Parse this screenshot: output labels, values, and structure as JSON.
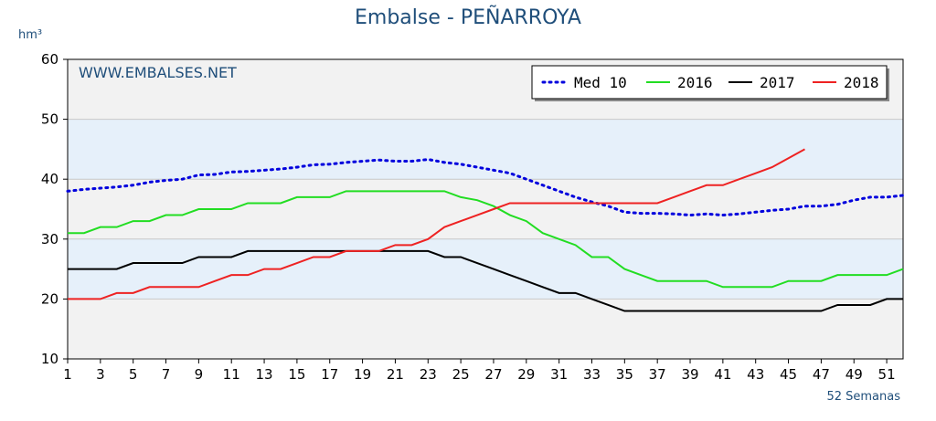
{
  "chart_data": {
    "type": "line",
    "title": "Embalse - PEÑARROYA",
    "y_label": "hm³",
    "x_label": "52 Semanas",
    "watermark": "WWW.EMBALSES.NET",
    "x": [
      1,
      2,
      3,
      4,
      5,
      6,
      7,
      8,
      9,
      10,
      11,
      12,
      13,
      14,
      15,
      16,
      17,
      18,
      19,
      20,
      21,
      22,
      23,
      24,
      25,
      26,
      27,
      28,
      29,
      30,
      31,
      32,
      33,
      34,
      35,
      36,
      37,
      38,
      39,
      40,
      41,
      42,
      43,
      44,
      45,
      46,
      47,
      48,
      49,
      50,
      51,
      52
    ],
    "xlim": [
      1,
      52
    ],
    "xticks": [
      1,
      3,
      5,
      7,
      9,
      11,
      13,
      15,
      17,
      19,
      21,
      23,
      25,
      27,
      29,
      31,
      33,
      35,
      37,
      39,
      41,
      43,
      45,
      47,
      49,
      51
    ],
    "ylim": [
      10,
      60
    ],
    "yticks": [
      10,
      20,
      30,
      40,
      50,
      60
    ],
    "grid": true,
    "legend": "top-right",
    "series": [
      {
        "name": "Med 10",
        "color": "#0000dd",
        "dash": "dotted",
        "values": [
          38,
          38.3,
          38.5,
          38.7,
          39,
          39.5,
          39.8,
          40,
          40.7,
          40.8,
          41.2,
          41.3,
          41.5,
          41.7,
          42,
          42.4,
          42.5,
          42.8,
          43,
          43.2,
          43,
          43,
          43.3,
          42.8,
          42.5,
          42,
          41.5,
          41,
          40,
          39,
          38,
          37,
          36.2,
          35.5,
          34.5,
          34.3,
          34.3,
          34.2,
          34,
          34.2,
          34,
          34.2,
          34.5,
          34.8,
          35,
          35.5,
          35.5,
          35.8,
          36.5,
          37,
          37,
          37.3
        ]
      },
      {
        "name": "2016",
        "color": "#22dd22",
        "values": [
          31,
          31,
          32,
          32,
          33,
          33,
          34,
          34,
          35,
          35,
          35,
          36,
          36,
          36,
          37,
          37,
          37,
          38,
          38,
          38,
          38,
          38,
          38,
          38,
          37,
          36.5,
          35.5,
          34,
          33,
          31,
          30,
          29,
          27,
          27,
          25,
          24,
          23,
          23,
          23,
          23,
          22,
          22,
          22,
          22,
          23,
          23,
          23,
          24,
          24,
          24,
          24,
          25
        ]
      },
      {
        "name": "2017",
        "color": "#000000",
        "values": [
          25,
          25,
          25,
          25,
          26,
          26,
          26,
          26,
          27,
          27,
          27,
          28,
          28,
          28,
          28,
          28,
          28,
          28,
          28,
          28,
          28,
          28,
          28,
          27,
          27,
          26,
          25,
          24,
          23,
          22,
          21,
          21,
          20,
          19,
          18,
          18,
          18,
          18,
          18,
          18,
          18,
          18,
          18,
          18,
          18,
          18,
          18,
          19,
          19,
          19,
          20,
          20
        ]
      },
      {
        "name": "2018",
        "color": "#ee2222",
        "values": [
          20,
          20,
          20,
          21,
          21,
          22,
          22,
          22,
          22,
          23,
          24,
          24,
          25,
          25,
          26,
          27,
          27,
          28,
          28,
          28,
          29,
          29,
          30,
          32,
          33,
          34,
          35,
          36,
          36,
          36,
          36,
          36,
          36,
          36,
          36,
          36,
          36,
          37,
          38,
          39,
          39,
          40,
          41,
          42,
          43.5,
          45,
          null,
          null,
          null,
          null,
          null,
          null
        ]
      }
    ]
  }
}
